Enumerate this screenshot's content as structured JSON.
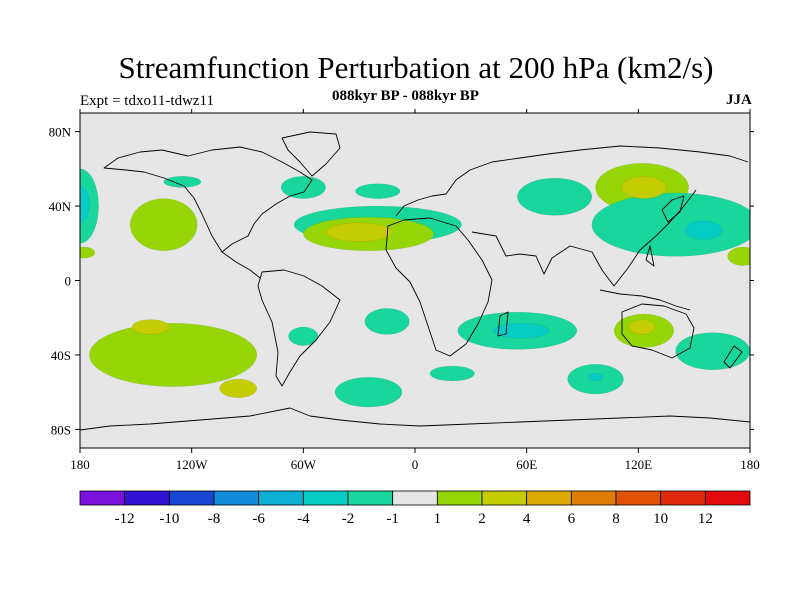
{
  "chart_data": {
    "type": "heatmap",
    "title": "Streamfunction Perturbation at 200 hPa (km2/s)",
    "left_subtitle": "Expt = tdxo11-tdwz11",
    "center_subtitle": "088kyr BP - 088kyr BP",
    "right_subtitle": "JJA",
    "projection": "cylindrical-equidistant",
    "xlim": [
      -180,
      180
    ],
    "ylim": [
      -90,
      90
    ],
    "x_ticks": [
      {
        "value": -180,
        "label": "180"
      },
      {
        "value": -120,
        "label": "120W"
      },
      {
        "value": -60,
        "label": "60W"
      },
      {
        "value": 0,
        "label": "0"
      },
      {
        "value": 60,
        "label": "60E"
      },
      {
        "value": 120,
        "label": "120E"
      },
      {
        "value": 180,
        "label": "180"
      }
    ],
    "y_ticks": [
      {
        "value": 80,
        "label": "80N"
      },
      {
        "value": 40,
        "label": "40N"
      },
      {
        "value": 0,
        "label": "0"
      },
      {
        "value": -40,
        "label": "40S"
      },
      {
        "value": -80,
        "label": "80S"
      }
    ],
    "colorbar": {
      "labels": [
        "-12",
        "-10",
        "-8",
        "-6",
        "-4",
        "-2",
        "-1",
        "1",
        "2",
        "4",
        "6",
        "8",
        "10",
        "12"
      ],
      "colors": [
        "#7a10dc",
        "#3213d4",
        "#1846d2",
        "#128bd8",
        "#0cb0d2",
        "#07ccc6",
        "#19d79c",
        "#e6e6e6",
        "#96d607",
        "#c4cc04",
        "#dcab04",
        "#df7e06",
        "#e05208",
        "#e1290b",
        "#e20a0c"
      ]
    },
    "anomaly_regions": [
      {
        "name": "n-atlantic-negative",
        "level": -1,
        "lon": -20,
        "lat": 30,
        "rx": 45,
        "ry": 10
      },
      {
        "name": "mid-atlantic-positive",
        "level": 1,
        "lon": -25,
        "lat": 25,
        "rx": 35,
        "ry": 9
      },
      {
        "name": "n-atlantic-high",
        "level": 2,
        "lon": -30,
        "lat": 26,
        "rx": 18,
        "ry": 5
      },
      {
        "name": "n-america-negative",
        "level": -1,
        "lon": -60,
        "lat": 50,
        "rx": 12,
        "ry": 6
      },
      {
        "name": "atlantic-small-negative",
        "level": -1,
        "lon": -20,
        "lat": 48,
        "rx": 12,
        "ry": 4
      },
      {
        "name": "alaska-negative",
        "level": -1,
        "lon": -125,
        "lat": 53,
        "rx": 10,
        "ry": 3
      },
      {
        "name": "n-pacific-positive",
        "level": 1,
        "lon": -135,
        "lat": 30,
        "rx": 18,
        "ry": 14
      },
      {
        "name": "dateline-west-negative",
        "level": -1,
        "lon": -180,
        "lat": 40,
        "rx": 10,
        "ry": 20
      },
      {
        "name": "dateline-west-negative-core",
        "level": -2,
        "lon": -180,
        "lat": 41,
        "rx": 5,
        "ry": 10
      },
      {
        "name": "dateline-west-positive-strip",
        "level": 1,
        "lon": -178,
        "lat": 15,
        "rx": 6,
        "ry": 3
      },
      {
        "name": "siberia-positive",
        "level": 1,
        "lon": 122,
        "lat": 50,
        "rx": 25,
        "ry": 13
      },
      {
        "name": "siberia-positive-core",
        "level": 2,
        "lon": 123,
        "lat": 50,
        "rx": 12,
        "ry": 6
      },
      {
        "name": "nw-pacific-negative",
        "level": -1,
        "lon": 140,
        "lat": 30,
        "rx": 45,
        "ry": 17
      },
      {
        "name": "nw-pacific-negative-core",
        "level": -2,
        "lon": 155,
        "lat": 27,
        "rx": 10,
        "ry": 5
      },
      {
        "name": "central-asia-negative",
        "level": -1,
        "lon": 75,
        "lat": 45,
        "rx": 20,
        "ry": 10
      },
      {
        "name": "e-pacific-positive",
        "level": 1,
        "lon": 176,
        "lat": 13,
        "rx": 8,
        "ry": 5
      },
      {
        "name": "indian-ocean-negative",
        "level": -1,
        "lon": 55,
        "lat": -27,
        "rx": 32,
        "ry": 10
      },
      {
        "name": "indian-ocean-negative-core",
        "level": -2,
        "lon": 57,
        "lat": -27,
        "rx": 15,
        "ry": 4
      },
      {
        "name": "australia-positive",
        "level": 1,
        "lon": 123,
        "lat": -27,
        "rx": 16,
        "ry": 9
      },
      {
        "name": "australia-positive-core",
        "level": 2,
        "lon": 122,
        "lat": -25,
        "rx": 7,
        "ry": 4
      },
      {
        "name": "tasman-negative",
        "level": -1,
        "lon": 160,
        "lat": -38,
        "rx": 20,
        "ry": 10
      },
      {
        "name": "south-ocean-negative",
        "level": -1,
        "lon": 97,
        "lat": -53,
        "rx": 15,
        "ry": 8
      },
      {
        "name": "south-ocean-negative-core",
        "level": -2,
        "lon": 97,
        "lat": -52,
        "rx": 4,
        "ry": 2
      },
      {
        "name": "sw-pacific-positive",
        "level": 1,
        "lon": -130,
        "lat": -40,
        "rx": 45,
        "ry": 17
      },
      {
        "name": "sw-pacific-core-1",
        "level": 2,
        "lon": -142,
        "lat": -25,
        "rx": 10,
        "ry": 4
      },
      {
        "name": "se-pacific-core-2",
        "level": 2,
        "lon": -95,
        "lat": -58,
        "rx": 10,
        "ry": 5
      },
      {
        "name": "s-america-negative",
        "level": -1,
        "lon": -60,
        "lat": -30,
        "rx": 8,
        "ry": 5
      },
      {
        "name": "s-atlantic-negative",
        "level": -1,
        "lon": -15,
        "lat": -22,
        "rx": 12,
        "ry": 7
      },
      {
        "name": "s-atlantic-south-negative",
        "level": -1,
        "lon": -25,
        "lat": -60,
        "rx": 18,
        "ry": 8
      },
      {
        "name": "s-indian-negative",
        "level": -1,
        "lon": 20,
        "lat": -50,
        "rx": 12,
        "ry": 4
      }
    ]
  }
}
